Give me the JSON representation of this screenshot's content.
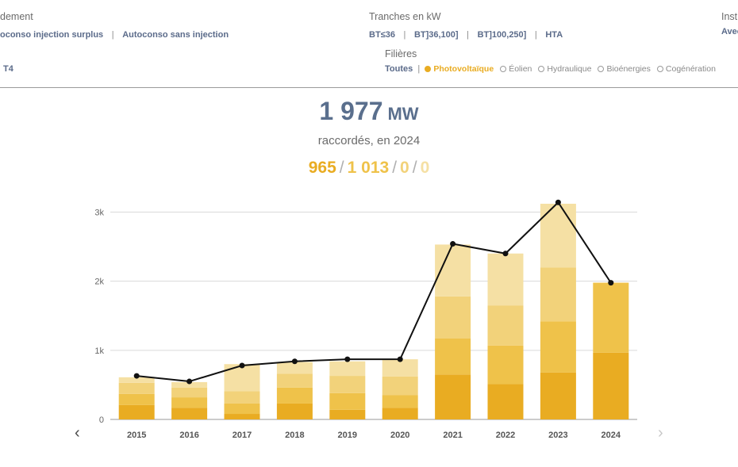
{
  "filters": {
    "raccordement": {
      "label": "dement",
      "options": [
        "oconso injection surplus",
        "Autoconso sans injection"
      ],
      "extra": "T4"
    },
    "tranches": {
      "label": "Tranches en kW",
      "options": [
        "BT≤36",
        "BT]36,100]",
        "BT]100,250]",
        "HTA"
      ]
    },
    "installation": {
      "label": "Inst",
      "value": "Avec"
    },
    "filieres": {
      "label": "Filières",
      "all_label": "Toutes",
      "options": [
        {
          "label": "Photovoltaïque",
          "selected": true
        },
        {
          "label": "Éolien",
          "selected": false
        },
        {
          "label": "Hydraulique",
          "selected": false
        },
        {
          "label": "Bioénergies",
          "selected": false
        },
        {
          "label": "Cogénération",
          "selected": false
        }
      ]
    }
  },
  "summary": {
    "total": "1 977",
    "unit": "MW",
    "subtitle": "raccordés, en 2024",
    "breakdown": [
      "965",
      "1 013",
      "0",
      "0"
    ],
    "breakdown_colors": [
      "#e9ac22",
      "#efc24a",
      "#f2d27a",
      "#f5e0a4"
    ]
  },
  "navigation": {
    "prev": "‹",
    "next": "›"
  },
  "chart_data": {
    "type": "bar",
    "stacked": true,
    "categories": [
      "2015",
      "2016",
      "2017",
      "2018",
      "2019",
      "2020",
      "2021",
      "2022",
      "2023",
      "2024"
    ],
    "series": [
      {
        "color": "#e9ac22",
        "values": [
          210,
          170,
          80,
          230,
          140,
          170,
          650,
          510,
          680,
          965
        ]
      },
      {
        "color": "#efc24a",
        "values": [
          160,
          150,
          150,
          230,
          240,
          180,
          520,
          560,
          740,
          1013
        ]
      },
      {
        "color": "#f2d27a",
        "values": [
          160,
          140,
          180,
          200,
          250,
          270,
          610,
          580,
          780,
          0
        ]
      },
      {
        "color": "#f5e0a4",
        "values": [
          80,
          80,
          390,
          170,
          210,
          250,
          750,
          750,
          920,
          0
        ]
      }
    ],
    "line": {
      "color": "#111111",
      "values": [
        630,
        550,
        780,
        840,
        870,
        870,
        2540,
        2400,
        3140,
        1977
      ]
    },
    "y_ticks": [
      {
        "value": 0,
        "label": "0"
      },
      {
        "value": 1000,
        "label": "1k"
      },
      {
        "value": 2000,
        "label": "2k"
      },
      {
        "value": 3000,
        "label": "3k"
      }
    ],
    "ylim": [
      0,
      3200
    ],
    "grid": true
  }
}
